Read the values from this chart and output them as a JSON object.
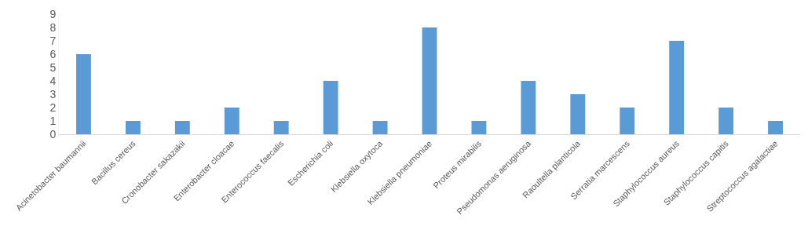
{
  "chart_data": {
    "type": "bar",
    "categories": [
      "Acinetobacter baumannii",
      "Bacillus cereus",
      "Cronobacter sakazakii",
      "Enterobacter cloacae",
      "Enterococcus faecalis",
      "Escherichia coli",
      "Klebsiella oxytoca",
      "Klebsiella pneumoniae",
      "Proteus mirabilis",
      "Pseudomonas aeruginosa",
      "Raoultella planticola",
      "Serratia marcescens",
      "Staphylococcus aureus",
      "Staphylococcus capitis",
      "Streptococcus agalactiae"
    ],
    "values": [
      6,
      1,
      1,
      2,
      1,
      4,
      1,
      8,
      1,
      4,
      3,
      2,
      7,
      2,
      1
    ],
    "color": "#5b9bd5",
    "ylim": [
      0,
      9
    ],
    "yticks": [
      0,
      1,
      2,
      3,
      4,
      5,
      6,
      7,
      8,
      9
    ],
    "grid": false
  }
}
